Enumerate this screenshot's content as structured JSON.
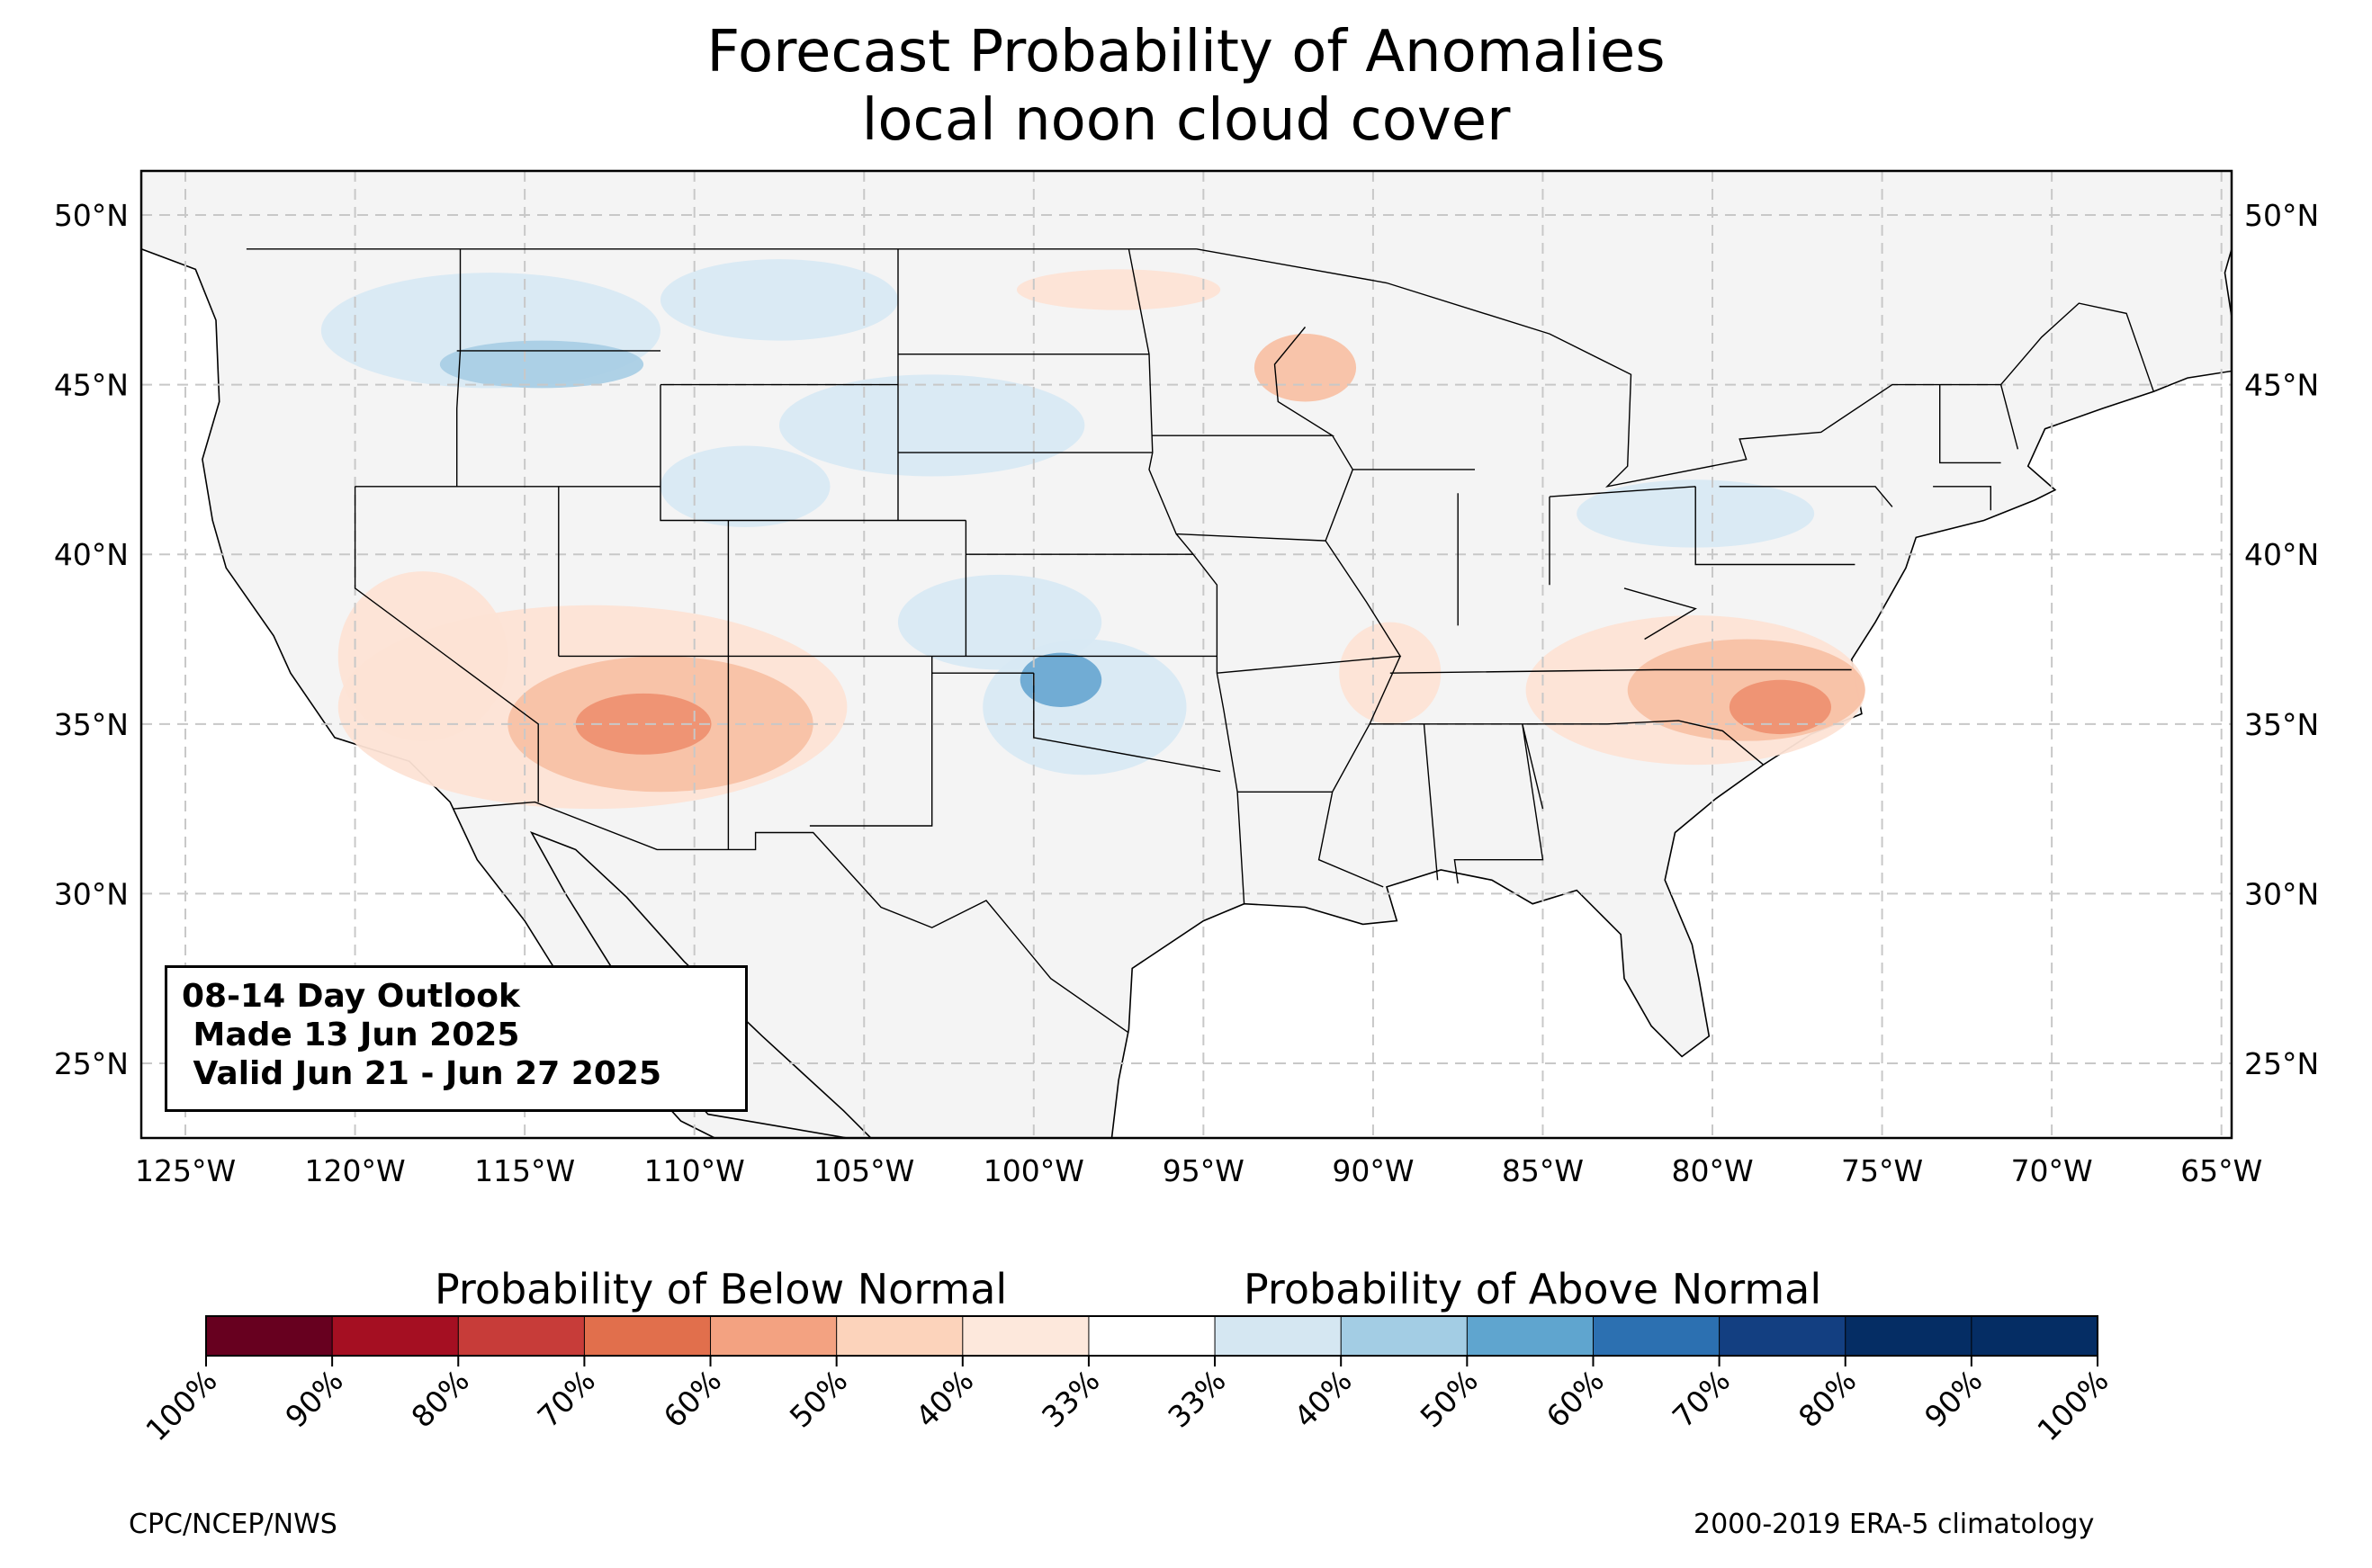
{
  "title": {
    "line1": "Forecast Probability of Anomalies",
    "line2": "local noon cloud cover"
  },
  "map": {
    "lon_ticks": [
      "125°W",
      "120°W",
      "115°W",
      "110°W",
      "105°W",
      "100°W",
      "95°W",
      "90°W",
      "85°W",
      "80°W",
      "75°W",
      "70°W",
      "65°W"
    ],
    "lat_ticks": [
      "50°N",
      "45°N",
      "40°N",
      "35°N",
      "30°N",
      "25°N"
    ],
    "extent": {
      "lon": [
        -126.3,
        -64.7
      ],
      "lat": [
        22.8,
        51.3
      ]
    },
    "gridlines": true,
    "land_color": "#f4f4f4",
    "regions": [
      {
        "category": "above",
        "level": "40-50%",
        "lon": -114.5,
        "lat": 45.6,
        "rx": 3.0,
        "ry": 0.7
      },
      {
        "category": "above",
        "level": "33-40%",
        "lon": -116.0,
        "lat": 46.6,
        "rx": 5.0,
        "ry": 1.7
      },
      {
        "category": "above",
        "level": "33-40%",
        "lon": -107.5,
        "lat": 47.5,
        "rx": 3.5,
        "ry": 1.2
      },
      {
        "category": "above",
        "level": "33-40%",
        "lon": -103.0,
        "lat": 43.8,
        "rx": 4.5,
        "ry": 1.5
      },
      {
        "category": "above",
        "level": "33-40%",
        "lon": -108.5,
        "lat": 42.0,
        "rx": 2.5,
        "ry": 1.2
      },
      {
        "category": "above",
        "level": "33-40%",
        "lon": -101.0,
        "lat": 38.0,
        "rx": 3.0,
        "ry": 1.4
      },
      {
        "category": "above",
        "level": "50-60%",
        "lon": -99.2,
        "lat": 36.3,
        "rx": 1.2,
        "ry": 0.8
      },
      {
        "category": "above",
        "level": "33-40%",
        "lon": -98.5,
        "lat": 35.5,
        "rx": 3.0,
        "ry": 2.0
      },
      {
        "category": "above",
        "level": "33-40%",
        "lon": -80.5,
        "lat": 41.2,
        "rx": 3.5,
        "ry": 1.0
      },
      {
        "category": "below",
        "level": "50-60%",
        "lon": -111.5,
        "lat": 35.0,
        "rx": 2.0,
        "ry": 0.9
      },
      {
        "category": "below",
        "level": "40-50%",
        "lon": -111.0,
        "lat": 35.0,
        "rx": 4.5,
        "ry": 2.0
      },
      {
        "category": "below",
        "level": "33-40%",
        "lon": -113.0,
        "lat": 35.5,
        "rx": 7.5,
        "ry": 3.0
      },
      {
        "category": "below",
        "level": "33-40%",
        "lon": -118.0,
        "lat": 37.0,
        "rx": 2.5,
        "ry": 2.5
      },
      {
        "category": "below",
        "level": "50-60%",
        "lon": -78.0,
        "lat": 35.5,
        "rx": 1.5,
        "ry": 0.8
      },
      {
        "category": "below",
        "level": "40-50%",
        "lon": -79.0,
        "lat": 36.0,
        "rx": 3.5,
        "ry": 1.5
      },
      {
        "category": "below",
        "level": "33-40%",
        "lon": -80.5,
        "lat": 36.0,
        "rx": 5.0,
        "ry": 2.2
      },
      {
        "category": "below",
        "level": "40-50%",
        "lon": -92.0,
        "lat": 45.5,
        "rx": 1.5,
        "ry": 1.0
      },
      {
        "category": "below",
        "level": "33-40%",
        "lon": -89.5,
        "lat": 36.5,
        "rx": 1.5,
        "ry": 1.5
      },
      {
        "category": "below",
        "level": "33-40%",
        "lon": -97.5,
        "lat": 47.8,
        "rx": 3.0,
        "ry": 0.6
      }
    ]
  },
  "outlook_box": {
    "line1": "08-14 Day Outlook",
    "line2": " Made 13 Jun 2025",
    "line3": " Valid Jun 21 - Jun 27 2025"
  },
  "colorbar": {
    "below_label": "Probability of Below Normal",
    "above_label": "Probability of Above Normal",
    "tick_labels": [
      "100%",
      "90%",
      "80%",
      "70%",
      "60%",
      "50%",
      "40%",
      "33%",
      "33%",
      "40%",
      "50%",
      "60%",
      "70%",
      "80%",
      "90%",
      "100%"
    ],
    "colors": [
      "#67001f",
      "#a50f22",
      "#c73c39",
      "#e16f4c",
      "#f3a281",
      "#fcd3bb",
      "#f7f7f7",
      "#d5e7f2",
      "#a3cde4",
      "#5fa5cf",
      "#2c70b1",
      "#133f81",
      "#052d64"
    ]
  },
  "footer": {
    "left": "CPC/NCEP/NWS",
    "right": "2000-2019 ERA-5 climatology"
  },
  "level_colors": {
    "below": {
      "33-40%": "#fde3d5",
      "40-50%": "#f8c1a5",
      "50-60%": "#ee9171"
    },
    "above": {
      "33-40%": "#d8e9f3",
      "40-50%": "#aacfe5",
      "50-60%": "#6ba9d2"
    }
  }
}
